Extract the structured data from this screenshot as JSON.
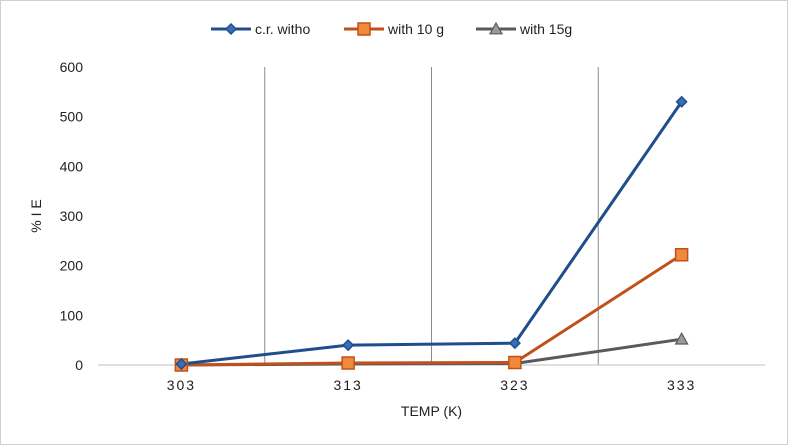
{
  "chart_data": {
    "type": "line",
    "categories": [
      "303",
      "313",
      "323",
      "333"
    ],
    "series": [
      {
        "name": "c.r. witho",
        "values": [
          2,
          40,
          44,
          530
        ],
        "color": "#1f4e8c",
        "marker": "diamond"
      },
      {
        "name": "with 10 g",
        "values": [
          0,
          4,
          5,
          222
        ],
        "color": "#c0501c",
        "marker": "square"
      },
      {
        "name": "with 15g",
        "values": [
          0,
          2,
          3,
          52
        ],
        "color": "#5a5a5a",
        "marker": "triangle"
      }
    ],
    "xlabel": "TEMP (K)",
    "ylabel": "% I E",
    "ylim": [
      0,
      600
    ],
    "yticks": [
      0,
      100,
      200,
      300,
      400,
      500,
      600
    ],
    "grid": "vertical",
    "legend": "top"
  }
}
